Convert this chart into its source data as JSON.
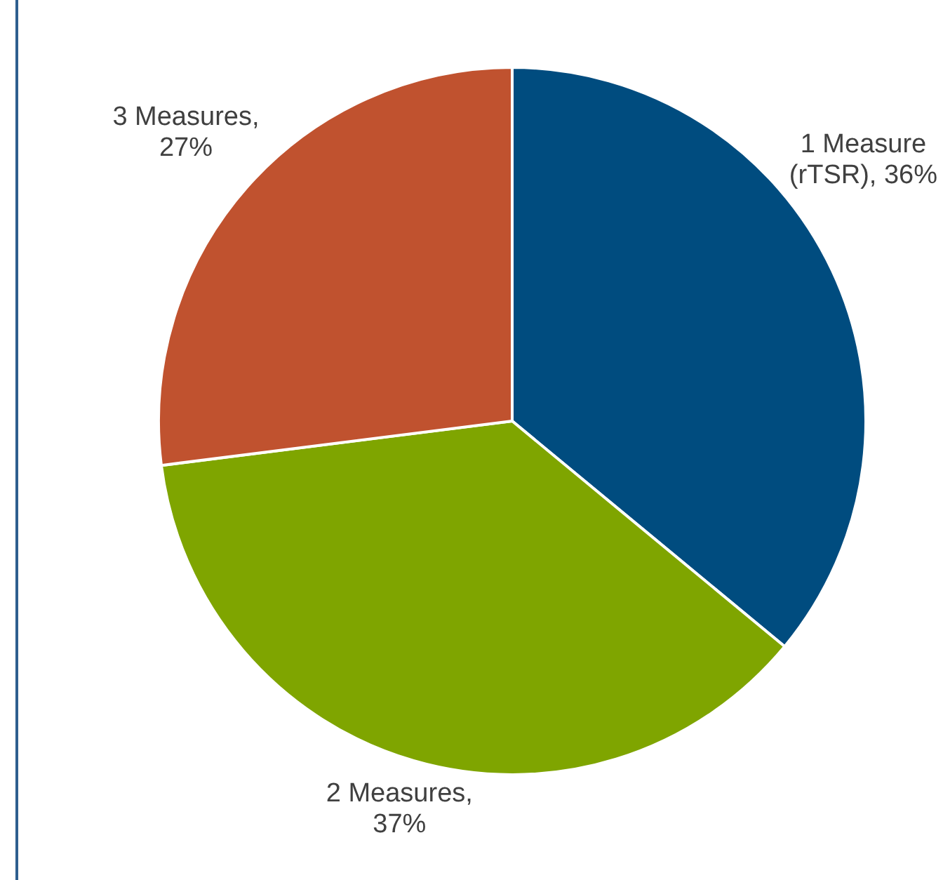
{
  "chart_data": {
    "type": "pie",
    "categories": [
      "1 Measure (rTSR)",
      "2 Measures",
      "3 Measures"
    ],
    "values": [
      36,
      37,
      27
    ],
    "value_labels": [
      ", 36%",
      ", 37%",
      ", 27%"
    ],
    "colors": [
      "#004c7f",
      "#7fa500",
      "#c0522f"
    ],
    "legend": false
  }
}
